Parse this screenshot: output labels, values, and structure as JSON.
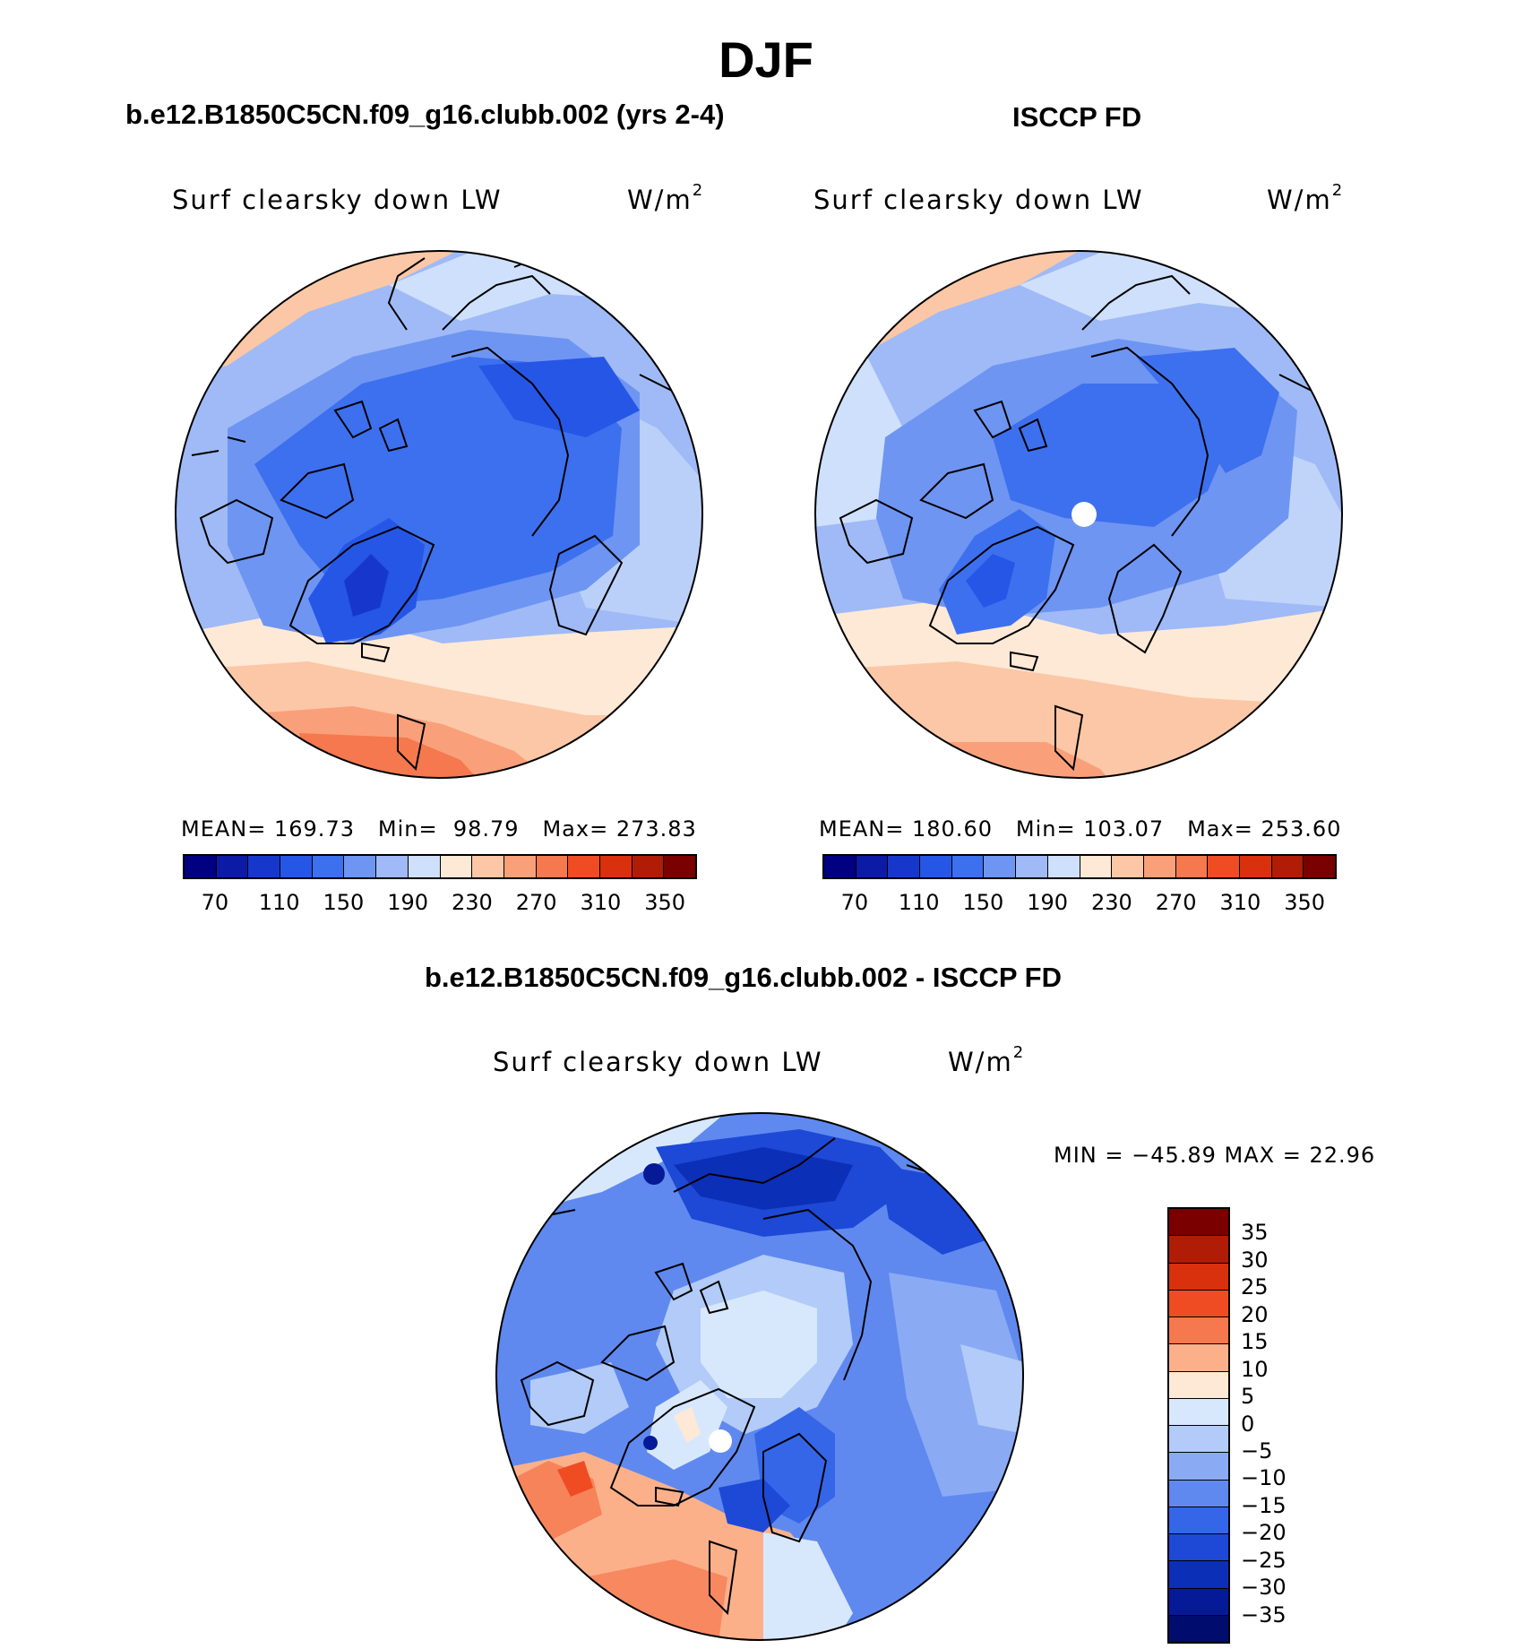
{
  "figure": {
    "title": "DJF"
  },
  "chart_data": [
    {
      "type": "heatmap",
      "projection": "north-polar-stereographic",
      "title": "b.e12.B1850C5CN.f09_g16.clubb.002 (yrs 2-4)",
      "variable": "Surf clearsky down LW",
      "units_base": "W/m",
      "units_exp": "2",
      "stats": {
        "mean_label": "MEAN=",
        "mean": "169.73",
        "min_label": "Min=",
        "min": "98.79",
        "max_label": "Max=",
        "max": "273.83"
      },
      "levels": [
        "70",
        "110",
        "150",
        "190",
        "230",
        "270",
        "310",
        "350"
      ],
      "colorbar": [
        "#000080",
        "#0b1ba6",
        "#1737cc",
        "#2556e6",
        "#3d70ee",
        "#6e95f2",
        "#9fbaf6",
        "#cfe0fc",
        "#fde9d6",
        "#fcc7a6",
        "#f9a07a",
        "#f5784e",
        "#ef4c23",
        "#d9300e",
        "#b01c05",
        "#7a0000"
      ]
    },
    {
      "type": "heatmap",
      "projection": "north-polar-stereographic",
      "title": "ISCCP FD",
      "variable": "Surf clearsky down LW",
      "units_base": "W/m",
      "units_exp": "2",
      "stats": {
        "mean_label": "MEAN=",
        "mean": "180.60",
        "min_label": "Min=",
        "min": "103.07",
        "max_label": "Max=",
        "max": "253.60"
      },
      "levels": [
        "70",
        "110",
        "150",
        "190",
        "230",
        "270",
        "310",
        "350"
      ],
      "colorbar": [
        "#000080",
        "#0b1ba6",
        "#1737cc",
        "#2556e6",
        "#3d70ee",
        "#6e95f2",
        "#9fbaf6",
        "#cfe0fc",
        "#fde9d6",
        "#fcc7a6",
        "#f9a07a",
        "#f5784e",
        "#ef4c23",
        "#d9300e",
        "#b01c05",
        "#7a0000"
      ]
    },
    {
      "type": "heatmap",
      "projection": "north-polar-stereographic",
      "title": "b.e12.B1850C5CN.f09_g16.clubb.002 - ISCCP FD",
      "variable": "Surf clearsky down LW",
      "units_base": "W/m",
      "units_exp": "2",
      "stats_text": "MIN = −45.89 MAX =   22.96",
      "levels": [
        "35",
        "30",
        "25",
        "20",
        "15",
        "10",
        "5",
        "0",
        "−5",
        "−10",
        "−15",
        "−20",
        "−25",
        "−30",
        "−35"
      ],
      "colorbar": [
        "#7a0000",
        "#b01c05",
        "#d9300e",
        "#ef4c23",
        "#f5784e",
        "#fcb08a",
        "#fde9d6",
        "#d8e8fc",
        "#b2cbf8",
        "#8aabf4",
        "#5f89ef",
        "#3566e8",
        "#1d49d6",
        "#0c2fb8",
        "#061a98",
        "#000d6e"
      ]
    }
  ]
}
